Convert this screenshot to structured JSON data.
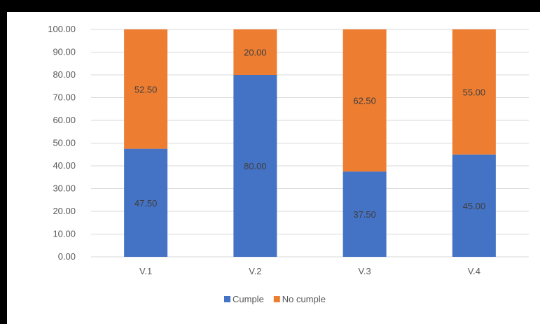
{
  "chart_data": {
    "type": "bar",
    "stacked": true,
    "categories": [
      "V.1",
      "V.2",
      "V.3",
      "V.4"
    ],
    "series": [
      {
        "name": "Cumple",
        "color": "#4472C4",
        "values": [
          47.5,
          80.0,
          37.5,
          45.0
        ],
        "labels": [
          "47.50",
          "80.00",
          "37.50",
          "45.00"
        ]
      },
      {
        "name": "No cumple",
        "color": "#ED7D31",
        "values": [
          52.5,
          20.0,
          62.5,
          55.0
        ],
        "labels": [
          "52.50",
          "20.00",
          "62.50",
          "55.00"
        ]
      }
    ],
    "ylim": [
      0,
      100
    ],
    "y_ticks": [
      "0.00",
      "10.00",
      "20.00",
      "30.00",
      "40.00",
      "50.00",
      "60.00",
      "70.00",
      "80.00",
      "90.00",
      "100.00"
    ],
    "grid": true,
    "legend_position": "bottom",
    "title": "",
    "xlabel": "",
    "ylabel": ""
  }
}
